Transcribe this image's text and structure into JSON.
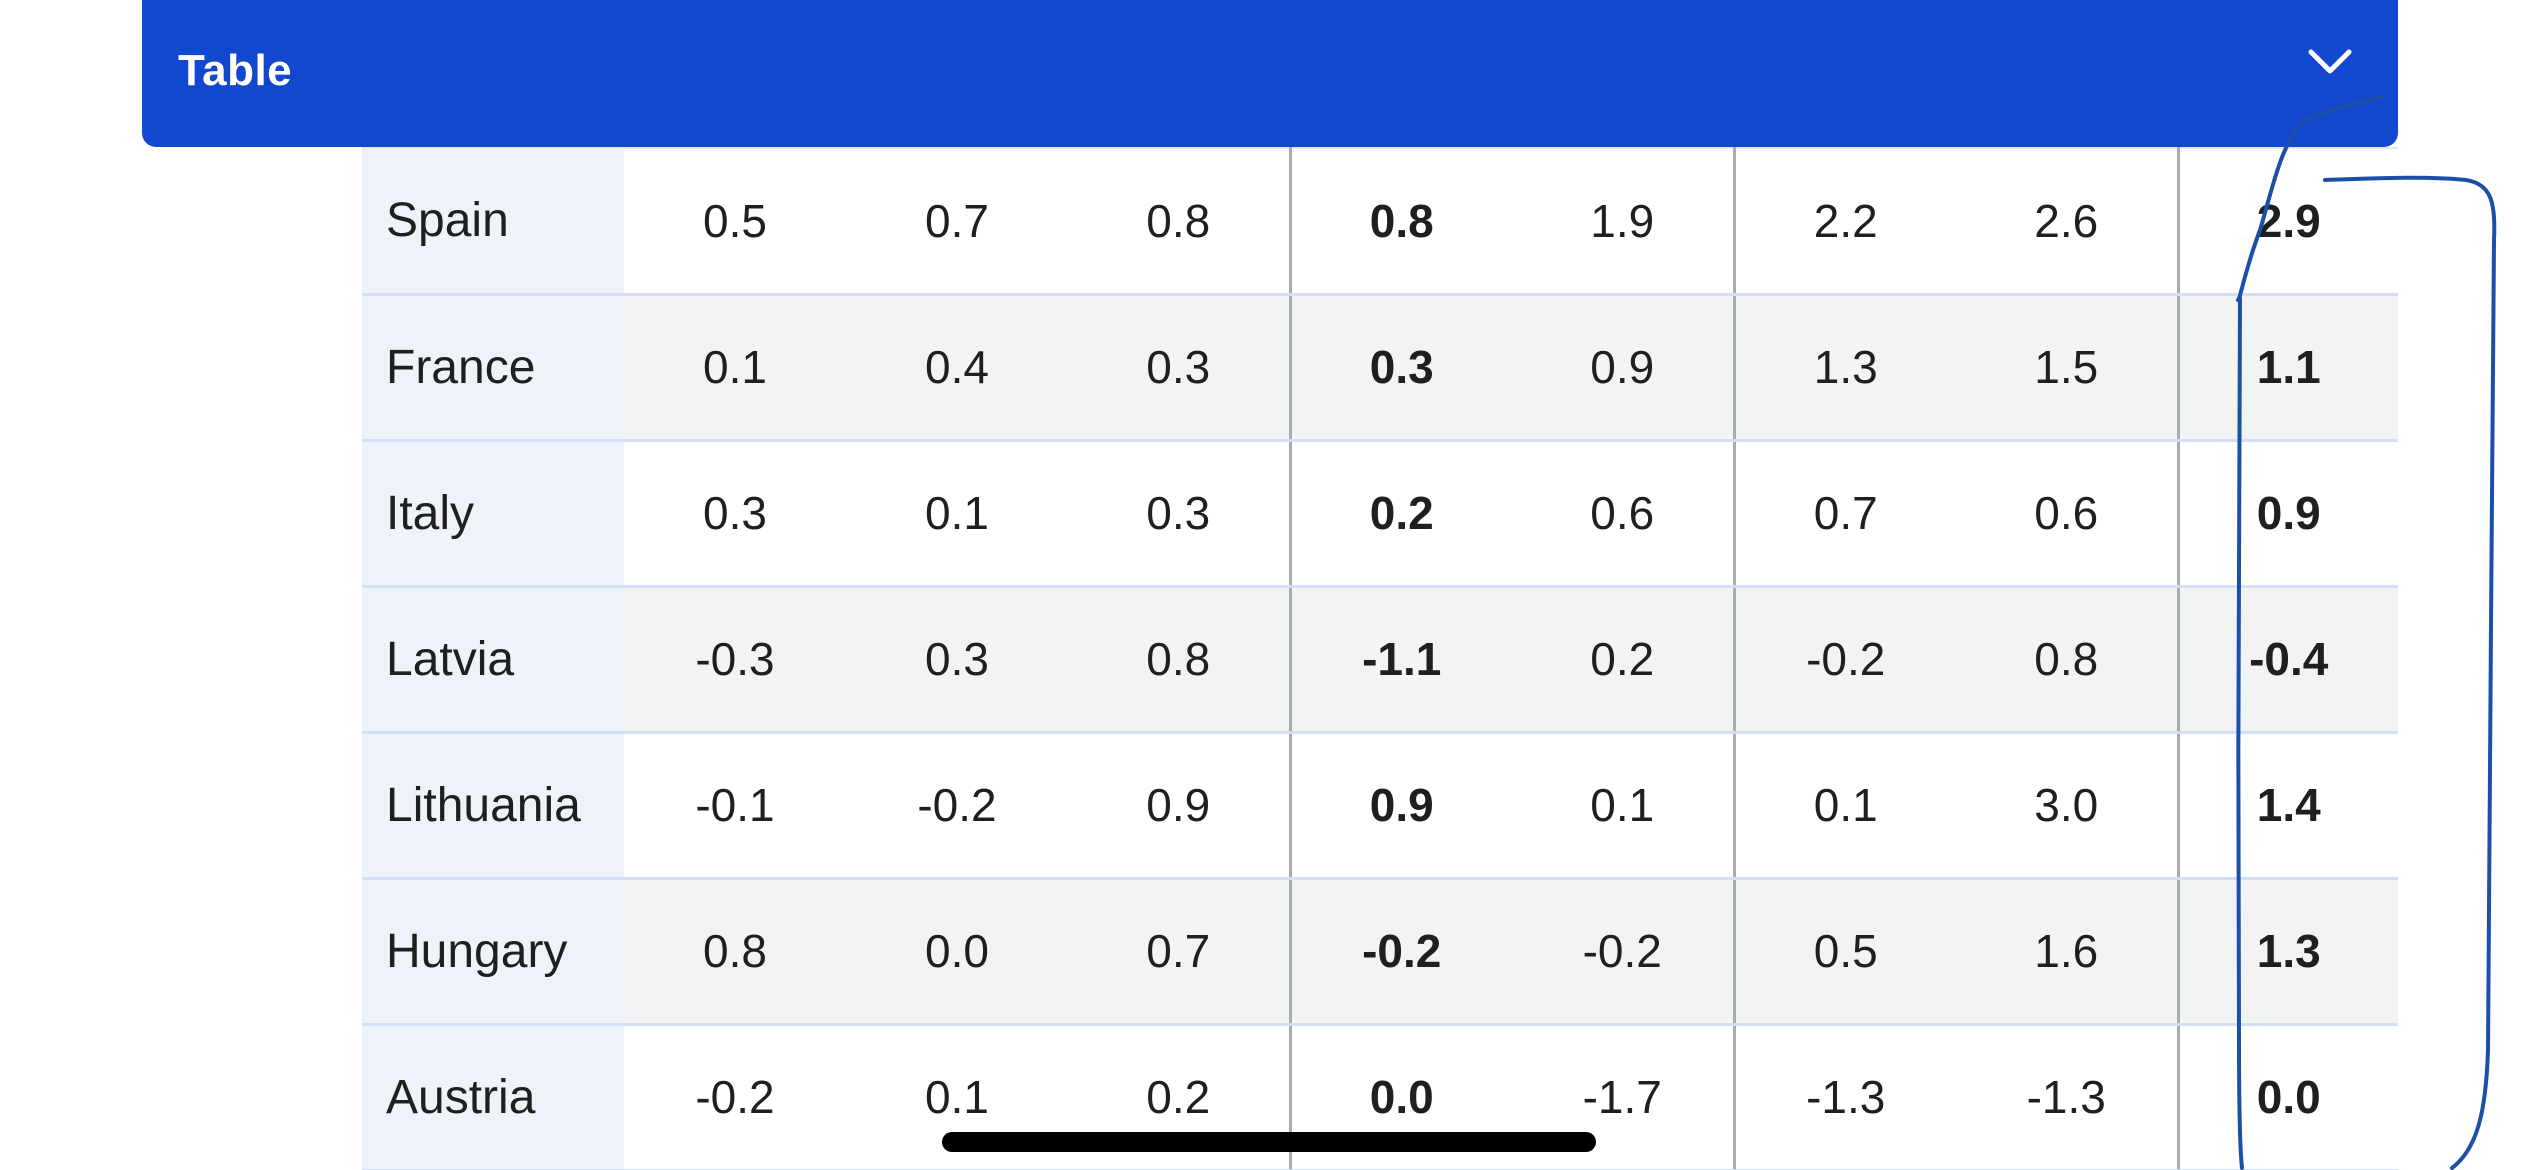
{
  "header": {
    "title": "Table",
    "chevron_icon": "chevron-down-icon"
  },
  "table": {
    "rows": [
      {
        "name": "Spain",
        "values": [
          "0.5",
          "0.7",
          "0.8",
          "0.8",
          "1.9",
          "2.2",
          "2.6",
          "2.9"
        ]
      },
      {
        "name": "France",
        "values": [
          "0.1",
          "0.4",
          "0.3",
          "0.3",
          "0.9",
          "1.3",
          "1.5",
          "1.1"
        ]
      },
      {
        "name": "Italy",
        "values": [
          "0.3",
          "0.1",
          "0.3",
          "0.2",
          "0.6",
          "0.7",
          "0.6",
          "0.9"
        ]
      },
      {
        "name": "Latvia",
        "values": [
          "-0.3",
          "0.3",
          "0.8",
          "-1.1",
          "0.2",
          "-0.2",
          "0.8",
          "-0.4"
        ]
      },
      {
        "name": "Lithuania",
        "values": [
          "-0.1",
          "-0.2",
          "0.9",
          "0.9",
          "0.1",
          "0.1",
          "3.0",
          "1.4"
        ]
      },
      {
        "name": "Hungary",
        "values": [
          "0.8",
          "0.0",
          "0.7",
          "-0.2",
          "-0.2",
          "0.5",
          "1.6",
          "1.3"
        ]
      },
      {
        "name": "Austria",
        "values": [
          "-0.2",
          "0.1",
          "0.2",
          "0.0",
          "-1.7",
          "-1.3",
          "-1.3",
          "0.0"
        ]
      }
    ]
  },
  "colors": {
    "header_bg": "#1247cf",
    "annotation_stroke": "#1c4fa8",
    "row_border": "#d4def6"
  }
}
